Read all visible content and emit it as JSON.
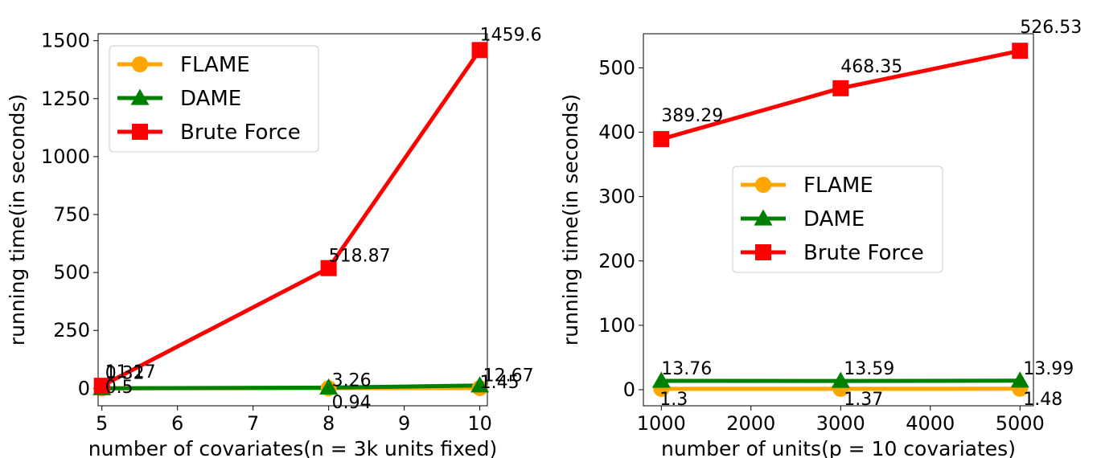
{
  "chart_data": [
    {
      "type": "line",
      "xlabel": "number of covariates(n = 3k units fixed)",
      "ylabel": "running time(in seconds)",
      "xlim": [
        4.95,
        10.1
      ],
      "ylim": [
        -75,
        1530
      ],
      "xticks": [
        5,
        6,
        7,
        8,
        9,
        10
      ],
      "yticks": [
        0,
        250,
        500,
        750,
        1000,
        1250,
        1500
      ],
      "x": [
        5,
        8,
        10
      ],
      "legend_position": "upper-left",
      "series": [
        {
          "name": "FLAME",
          "color": "#FFA500",
          "marker": "circle",
          "values": [
            0.5,
            0.94,
            1.45
          ],
          "labels": [
            "0.5",
            "0.94",
            "1.45"
          ]
        },
        {
          "name": "DAME",
          "color": "#008000",
          "marker": "triangle",
          "values": [
            0.32,
            3.26,
            12.67
          ],
          "labels": [
            "0.32",
            "3.26",
            "12.67"
          ]
        },
        {
          "name": "Brute Force",
          "color": "#FF0000",
          "marker": "square",
          "values": [
            11.17,
            518.87,
            1459.6
          ],
          "labels": [
            "11.17",
            "518.87",
            "1459.6"
          ]
        }
      ]
    },
    {
      "type": "line",
      "xlabel": "number of units(p = 10 covariates)",
      "ylabel": "running time(in seconds)",
      "xlim": [
        800,
        5150
      ],
      "ylim": [
        -25,
        553
      ],
      "xticks": [
        1000,
        2000,
        3000,
        4000,
        5000
      ],
      "yticks": [
        0,
        100,
        200,
        300,
        400,
        500
      ],
      "x": [
        1000,
        3000,
        5000
      ],
      "legend_position": "center",
      "series": [
        {
          "name": "FLAME",
          "color": "#FFA500",
          "marker": "circle",
          "values": [
            1.3,
            1.37,
            1.48
          ],
          "labels": [
            "1.3",
            "1.37",
            "1.48"
          ]
        },
        {
          "name": "DAME",
          "color": "#008000",
          "marker": "triangle",
          "values": [
            13.76,
            13.59,
            13.99
          ],
          "labels": [
            "13.76",
            "13.59",
            "13.99"
          ]
        },
        {
          "name": "Brute Force",
          "color": "#FF0000",
          "marker": "square",
          "values": [
            389.29,
            468.35,
            526.53
          ],
          "labels": [
            "389.29",
            "468.35",
            "526.53"
          ]
        }
      ]
    }
  ]
}
